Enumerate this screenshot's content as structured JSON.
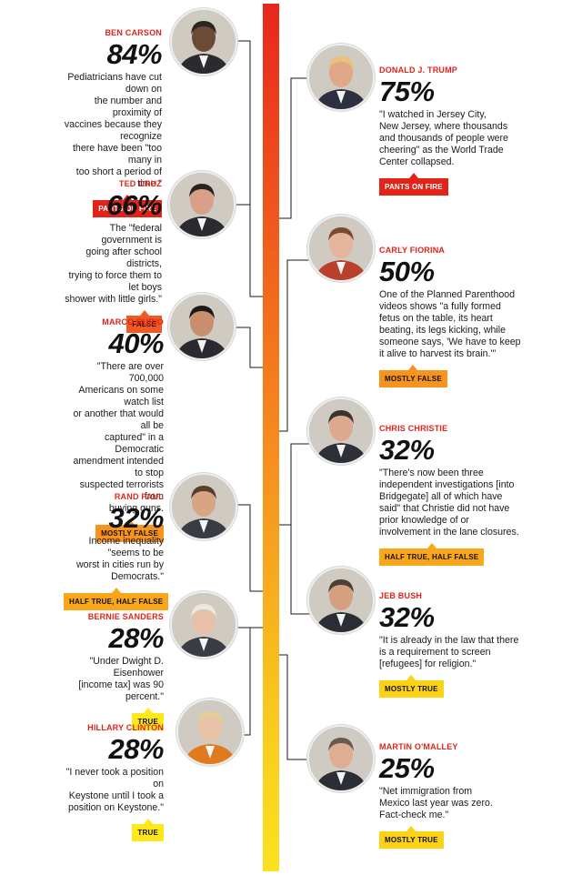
{
  "chart_data": {
    "type": "bar",
    "title": "",
    "xlabel": "",
    "ylabel": "",
    "ylim": [
      0,
      100
    ],
    "categories": [
      "BEN CARSON",
      "DONALD J. TRUMP",
      "TED CRUZ",
      "CARLY FIORINA",
      "MARCO RUBIO",
      "CHRIS CHRISTIE",
      "RAND PAUL",
      "JEB BUSH",
      "BERNIE SANDERS",
      "HILLARY CLINTON",
      "MARTIN O'MALLEY"
    ],
    "values": [
      84,
      75,
      66,
      50,
      40,
      32,
      32,
      32,
      28,
      28,
      25
    ],
    "candidates": [
      {
        "name": "BEN CARSON",
        "value": 84,
        "pct": "84%",
        "side": "left",
        "quote": "Pediatricians have cut down on\nthe number and proximity of\nvaccines because they recognize\nthere have been \"too many in\ntoo short a period of time.\"",
        "rating": "PANTS ON FIRE",
        "rating_color": "#e2231a",
        "rating_text_color": "#ffffff"
      },
      {
        "name": "DONALD J. TRUMP",
        "value": 75,
        "pct": "75%",
        "side": "right",
        "quote": "\"I watched in Jersey City,\nNew Jersey, where thousands\nand thousands of people were\ncheering\" as the World Trade\nCenter collapsed.",
        "rating": "PANTS ON FIRE",
        "rating_color": "#e2231a",
        "rating_text_color": "#ffffff"
      },
      {
        "name": "TED CRUZ",
        "value": 66,
        "pct": "66%",
        "side": "left",
        "quote": "The \"federal government is\ngoing after school districts,\ntrying to force them to let boys\nshower with little girls.\"",
        "rating": "FALSE",
        "rating_color": "#f05a22",
        "rating_text_color": "#111111"
      },
      {
        "name": "CARLY FIORINA",
        "value": 50,
        "pct": "50%",
        "side": "right",
        "quote": "One of the Planned Parenthood\nvideos shows \"a fully formed\nfetus on the table, its heart\nbeating, its legs kicking, while\nsomeone says, 'We have to keep\nit alive to harvest its brain.'\"",
        "rating": "MOSTLY FALSE",
        "rating_color": "#f7941d",
        "rating_text_color": "#111111"
      },
      {
        "name": "MARCO RUBIO",
        "value": 40,
        "pct": "40%",
        "side": "left",
        "quote": "\"There are over 700,000\nAmericans on some watch list\nor another that would all be\ncaptured\" in a Democratic\namendment intended to stop\nsuspected terrorists from\nbuying guns.",
        "rating": "MOSTLY FALSE",
        "rating_color": "#f7941d",
        "rating_text_color": "#111111"
      },
      {
        "name": "CHRIS CHRISTIE",
        "value": 32,
        "pct": "32%",
        "side": "right",
        "quote": "\"There's now been three\nindependent investigations [into\nBridgegate] all of which have\nsaid\" that Christie did not have\nprior knowledge of or\ninvolvement in the lane closures.",
        "rating": "HALF TRUE, HALF FALSE",
        "rating_color": "#f9a61a",
        "rating_text_color": "#111111"
      },
      {
        "name": "RAND PAUL",
        "value": 32,
        "pct": "32%",
        "side": "left",
        "quote": "Income inequality \"seems to be\nworst in cities run by Democrats.\"",
        "rating": "HALF TRUE, HALF FALSE",
        "rating_color": "#f9a61a",
        "rating_text_color": "#111111"
      },
      {
        "name": "JEB BUSH",
        "value": 32,
        "pct": "32%",
        "side": "right",
        "quote": "\"It is already in the law that there\nis a requirement to screen\n[refugees] for religion.\"",
        "rating": "MOSTLY TRUE",
        "rating_color": "#fcd116",
        "rating_text_color": "#111111"
      },
      {
        "name": "BERNIE SANDERS",
        "value": 28,
        "pct": "28%",
        "side": "left",
        "quote": "\"Under Dwight D. Eisenhower\n[income tax] was 90 percent.\"",
        "rating": "TRUE",
        "rating_color": "#ffe81a",
        "rating_text_color": "#111111"
      },
      {
        "name": "HILLARY CLINTON",
        "value": 28,
        "pct": "28%",
        "side": "left",
        "quote": "\"I never took a position on\nKeystone until I took a\nposition on Keystone.\"",
        "rating": "TRUE",
        "rating_color": "#ffe81a",
        "rating_text_color": "#111111"
      },
      {
        "name": "MARTIN O'MALLEY",
        "value": 25,
        "pct": "25%",
        "side": "right",
        "quote": "\"Net immigration from\nMexico last year was zero.\nFact-check me.\"",
        "rating": "MOSTLY TRUE",
        "rating_color": "#fcd116",
        "rating_text_color": "#111111"
      }
    ]
  }
}
